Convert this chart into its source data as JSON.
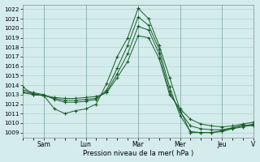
{
  "title": "Pression niveau de la mer( hPa )",
  "bg_color": "#d4ecec",
  "grid_color": "#aacccc",
  "line_color": "#1a5c2a",
  "ylim": [
    1008.5,
    1022.5
  ],
  "yticks": [
    1009,
    1010,
    1011,
    1012,
    1013,
    1014,
    1015,
    1016,
    1017,
    1018,
    1019,
    1020,
    1021,
    1022
  ],
  "series": [
    [
      1013.8,
      1013.0,
      1012.9,
      1011.5,
      1011.0,
      1011.3,
      1011.5,
      1012.0,
      1014.2,
      1017.0,
      1019.0,
      1022.1,
      1021.0,
      1018.2,
      1014.8,
      1011.4,
      1009.0,
      1009.0,
      1009.0,
      1009.2,
      1009.5,
      1009.8,
      1009.7
    ],
    [
      1013.5,
      1013.2,
      1013.0,
      1012.5,
      1012.2,
      1012.2,
      1012.3,
      1012.5,
      1013.5,
      1015.8,
      1018.2,
      1021.2,
      1020.3,
      1017.8,
      1013.8,
      1010.8,
      1009.1,
      1009.0,
      1009.0,
      1009.1,
      1009.4,
      1009.6,
      1009.8
    ],
    [
      1013.3,
      1013.1,
      1012.9,
      1012.6,
      1012.4,
      1012.4,
      1012.5,
      1012.6,
      1013.3,
      1015.2,
      1017.3,
      1020.2,
      1019.8,
      1017.3,
      1013.3,
      1011.2,
      1009.7,
      1009.4,
      1009.3,
      1009.3,
      1009.5,
      1009.7,
      1009.9
    ],
    [
      1013.2,
      1013.0,
      1012.9,
      1012.7,
      1012.6,
      1012.6,
      1012.7,
      1012.8,
      1013.2,
      1014.8,
      1016.5,
      1019.2,
      1019.0,
      1016.8,
      1013.0,
      1011.5,
      1010.4,
      1009.9,
      1009.7,
      1009.6,
      1009.7,
      1009.9,
      1010.1
    ]
  ],
  "day_labels": [
    "Sam",
    "Lun",
    "Mar",
    "Mer",
    "Jeu",
    "V"
  ],
  "day_x_positions": [
    2,
    6,
    11,
    15,
    19,
    22
  ],
  "num_points": 23,
  "figsize": [
    3.2,
    2.0
  ],
  "dpi": 100
}
